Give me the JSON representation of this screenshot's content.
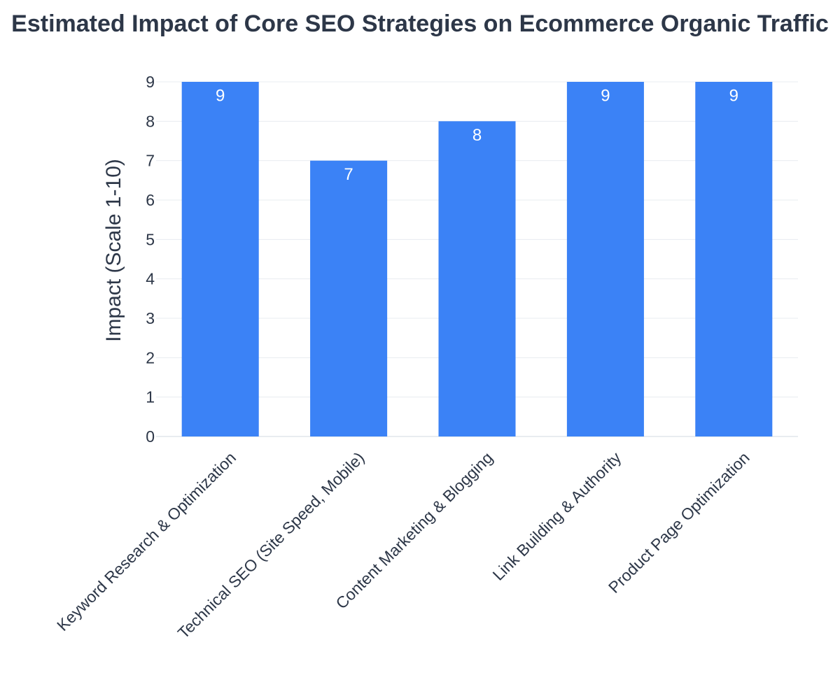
{
  "chart_data": {
    "type": "bar",
    "title": "Estimated Impact of Core SEO Strategies on Ecommerce Organic Traffic",
    "xlabel": "",
    "ylabel": "Impact (Scale 1-10)",
    "categories": [
      "Keyword Research & Optimization",
      "Technical SEO (Site Speed, Mobile)",
      "Content Marketing & Blogging",
      "Link Building & Authority",
      "Product Page Optimization"
    ],
    "values": [
      9,
      7,
      8,
      9,
      9
    ],
    "ylim": [
      0,
      9
    ],
    "yticks": [
      0,
      1,
      2,
      3,
      4,
      5,
      6,
      7,
      8,
      9
    ],
    "grid": true,
    "legend": "none",
    "data_labels": "inside-top",
    "bar_color": "#3b82f6",
    "text_color": "#2d3748",
    "grid_color": "#e8ecf0"
  }
}
